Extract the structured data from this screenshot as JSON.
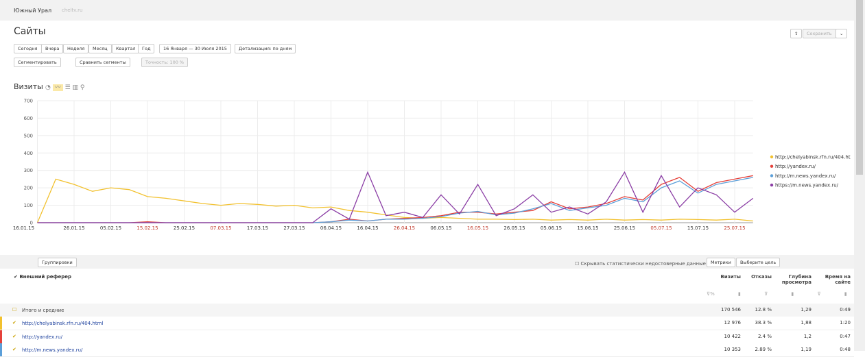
{
  "header": {
    "region": "Южный Урал",
    "site": "cheltv.ru",
    "title": "Сайты",
    "save": "Сохранить"
  },
  "toolbar": {
    "periods": [
      "Сегодня",
      "Вчера",
      "Неделя",
      "Месяц",
      "Квартал",
      "Год"
    ],
    "date_range": "16 Января — 30 Июля 2015",
    "detail": "Детализация: по дням",
    "segment": "Сегментировать",
    "compare": "Сравнить сегменты",
    "accuracy": "Точность: 100 %"
  },
  "chart_data": {
    "type": "line",
    "title": "Визиты",
    "x": [
      "16.01.15",
      "21.01.15",
      "26.01.15",
      "31.01.15",
      "05.02.15",
      "10.02.15",
      "15.02.15",
      "20.02.15",
      "25.02.15",
      "02.03.15",
      "07.03.15",
      "12.03.15",
      "17.03.15",
      "22.03.15",
      "27.03.15",
      "01.04.15",
      "06.04.15",
      "11.04.15",
      "16.04.15",
      "21.04.15",
      "26.04.15",
      "01.05.15",
      "06.05.15",
      "11.05.15",
      "16.05.15",
      "21.05.15",
      "26.05.15",
      "31.05.15",
      "05.06.15",
      "10.06.15",
      "15.06.15",
      "20.06.15",
      "25.06.15",
      "30.06.15",
      "05.07.15",
      "10.07.15",
      "15.07.15",
      "20.07.15",
      "25.07.15",
      "30.07.15"
    ],
    "series": [
      {
        "name": "http://chelyabinsk.rfn.ru/404.html",
        "color": "#f2c12e",
        "values": [
          0,
          250,
          220,
          180,
          200,
          190,
          150,
          140,
          125,
          110,
          100,
          110,
          105,
          95,
          100,
          85,
          90,
          70,
          60,
          45,
          30,
          25,
          30,
          25,
          20,
          20,
          18,
          20,
          15,
          18,
          15,
          20,
          15,
          18,
          15,
          20,
          18,
          15,
          20,
          10
        ]
      },
      {
        "name": "http://yandex.ru/",
        "color": "#e5413a",
        "values": [
          0,
          0,
          0,
          0,
          0,
          0,
          5,
          0,
          0,
          0,
          0,
          0,
          0,
          0,
          0,
          0,
          5,
          20,
          10,
          20,
          25,
          30,
          40,
          60,
          60,
          50,
          60,
          70,
          120,
          80,
          90,
          110,
          150,
          130,
          220,
          260,
          180,
          230,
          250,
          270
        ]
      },
      {
        "name": "http://m.news.yandex.ru/",
        "color": "#5b9fd9",
        "values": [
          0,
          0,
          0,
          0,
          0,
          0,
          0,
          0,
          0,
          0,
          0,
          0,
          0,
          0,
          0,
          0,
          5,
          15,
          10,
          20,
          20,
          25,
          35,
          55,
          65,
          45,
          55,
          80,
          110,
          70,
          85,
          100,
          140,
          120,
          200,
          240,
          170,
          220,
          240,
          260
        ]
      },
      {
        "name": "https://m.news.yandex.ru/",
        "color": "#8b3ea5",
        "values": [
          0,
          0,
          0,
          0,
          0,
          0,
          0,
          0,
          0,
          0,
          0,
          0,
          0,
          0,
          0,
          0,
          80,
          20,
          290,
          40,
          60,
          30,
          160,
          50,
          220,
          40,
          80,
          160,
          60,
          90,
          50,
          120,
          290,
          60,
          270,
          90,
          200,
          160,
          60,
          140
        ]
      }
    ],
    "xticks": [
      "16.01.15",
      "26.01.15",
      "05.02.15",
      "15.02.15",
      "25.02.15",
      "07.03.15",
      "17.03.15",
      "27.03.15",
      "06.04.15",
      "16.04.15",
      "26.04.15",
      "06.05.15",
      "16.05.15",
      "26.05.15",
      "05.06.15",
      "15.06.15",
      "25.06.15",
      "05.07.15",
      "15.07.15",
      "25.07.15"
    ],
    "xtick_colors": [
      "#333",
      "#333",
      "#333",
      "#c0392b",
      "#333",
      "#c0392b",
      "#333",
      "#333",
      "#333",
      "#333",
      "#c0392b",
      "#333",
      "#c0392b",
      "#333",
      "#333",
      "#333",
      "#333",
      "#c0392b",
      "#333",
      "#c0392b"
    ],
    "ylim": [
      0,
      700
    ],
    "yticks": [
      0,
      100,
      200,
      300,
      400,
      500,
      600,
      700
    ],
    "grid": true,
    "legend": "right"
  },
  "table": {
    "groupings": "Группировки",
    "hide": "Скрывать статистически недостоверные данные",
    "metrics": "Метрики",
    "goal": "Выберите цель",
    "dimension": "Внешний реферер",
    "columns": [
      "Визиты",
      "Отказы",
      "Глубина просмотра",
      "Время на сайте"
    ],
    "total": {
      "label": "Итого и средние",
      "values": [
        "170 546",
        "12.8 %",
        "1,29",
        "0:49"
      ]
    },
    "rows": [
      {
        "label": "http://chelyabinsk.rfn.ru/404.html",
        "values": [
          "12 976",
          "38.3 %",
          "1,88",
          "1:20"
        ]
      },
      {
        "label": "http://yandex.ru/",
        "values": [
          "10 422",
          "2.4 %",
          "1,2",
          "0:47"
        ]
      },
      {
        "label": "http://m.news.yandex.ru/",
        "values": [
          "10 353",
          "2.89 %",
          "1,19",
          "0:48"
        ]
      }
    ]
  }
}
